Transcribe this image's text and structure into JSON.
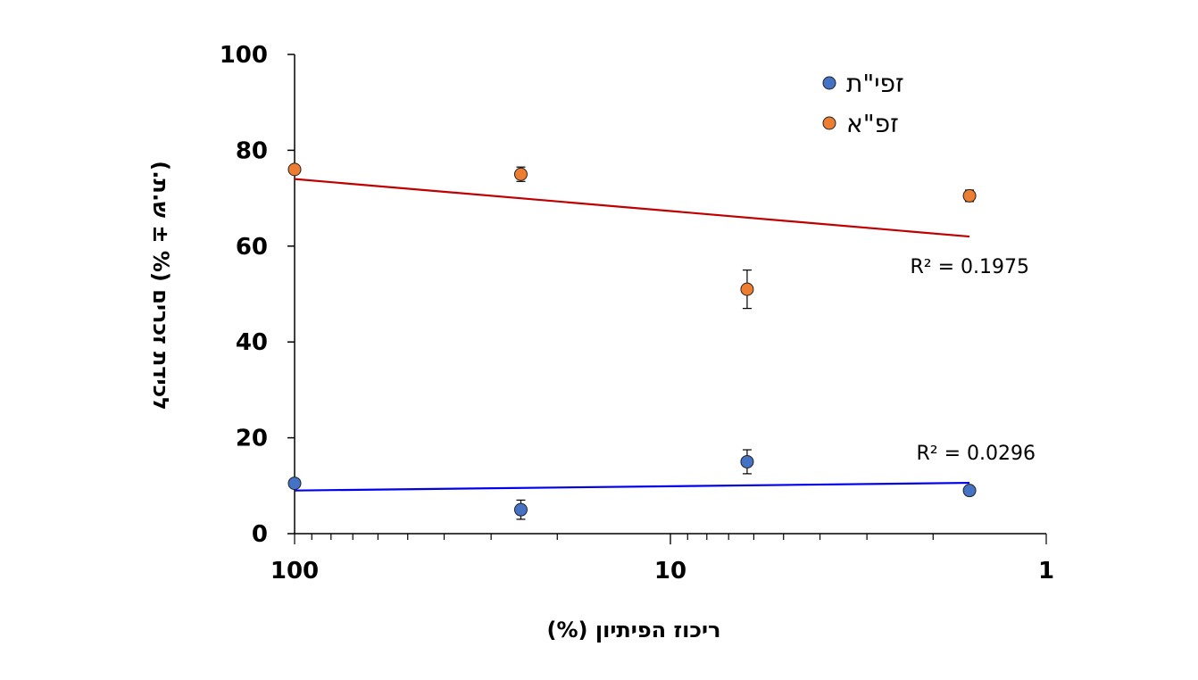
{
  "chart_data": {
    "type": "scatter",
    "xlabel": "ריכוז הפיתיון (%)",
    "ylabel": "לכידת זכרים (% ± ש.ת.)",
    "x_scale": "log",
    "x_reversed": true,
    "xlim": [
      100,
      1
    ],
    "ylim": [
      0,
      100
    ],
    "x_ticks": [
      "100",
      "10",
      "1"
    ],
    "y_ticks": [
      "0",
      "20",
      "40",
      "60",
      "80",
      "100"
    ],
    "legend_position": "top-right",
    "grid": false,
    "series": [
      {
        "name": "זפי\"ת",
        "color": "#4472c4",
        "x": [
          100,
          25,
          6.25,
          1.6
        ],
        "y": [
          10.5,
          5,
          15,
          9
        ],
        "error": [
          0,
          2,
          2.5,
          0
        ],
        "trendline": {
          "color": "#0000ee",
          "label": "R² = 0.0296",
          "start": [
            100,
            9
          ],
          "end": [
            1.6,
            10.6
          ]
        }
      },
      {
        "name": "זפ\"א",
        "color": "#ed7d31",
        "x": [
          100,
          25,
          6.25,
          1.6
        ],
        "y": [
          76,
          75,
          51,
          70.5
        ],
        "error": [
          0,
          1.5,
          4,
          1.2
        ],
        "trendline": {
          "color": "#c00000",
          "label": "R² = 0.1975",
          "start": [
            100,
            74
          ],
          "end": [
            1.6,
            62
          ]
        }
      }
    ]
  }
}
